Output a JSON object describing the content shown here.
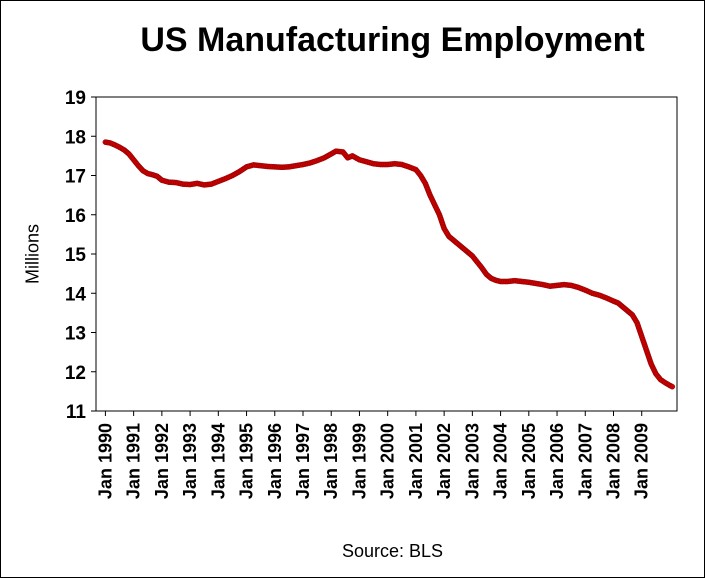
{
  "chart_data": {
    "type": "scatter",
    "title": "US Manufacturing Employment",
    "ylabel": "Millions",
    "xlabel": "",
    "source": "Source: BLS",
    "ylim": [
      11,
      19
    ],
    "yticks": [
      11,
      12,
      13,
      14,
      15,
      16,
      17,
      18,
      19
    ],
    "xlim": [
      "1989-09",
      "2010-04"
    ],
    "xtick_labels": [
      "Jan 1990",
      "Jan 1991",
      "Jan 1992",
      "Jan 1993",
      "Jan 1994",
      "Jan 1995",
      "Jan 1996",
      "Jan 1997",
      "Jan 1998",
      "Jan 1999",
      "Jan 2000",
      "Jan 2001",
      "Jan 2002",
      "Jan 2003",
      "Jan 2004",
      "Jan 2005",
      "Jan 2006",
      "Jan 2007",
      "Jan 2008",
      "Jan 2009"
    ],
    "grid": false,
    "marker_color": "#cc0000",
    "series": [
      {
        "points": [
          [
            "1990-01",
            17.85
          ],
          [
            "1990-03",
            17.83
          ],
          [
            "1990-05",
            17.78
          ],
          [
            "1990-07",
            17.72
          ],
          [
            "1990-09",
            17.65
          ],
          [
            "1990-11",
            17.55
          ],
          [
            "1991-01",
            17.4
          ],
          [
            "1991-03",
            17.25
          ],
          [
            "1991-05",
            17.12
          ],
          [
            "1991-07",
            17.05
          ],
          [
            "1991-09",
            17.02
          ],
          [
            "1991-11",
            16.98
          ],
          [
            "1992-01",
            16.88
          ],
          [
            "1992-04",
            16.83
          ],
          [
            "1992-07",
            16.82
          ],
          [
            "1992-10",
            16.78
          ],
          [
            "1993-01",
            16.77
          ],
          [
            "1993-04",
            16.8
          ],
          [
            "1993-07",
            16.76
          ],
          [
            "1993-10",
            16.78
          ],
          [
            "1994-01",
            16.85
          ],
          [
            "1994-04",
            16.92
          ],
          [
            "1994-07",
            17.0
          ],
          [
            "1994-10",
            17.1
          ],
          [
            "1995-01",
            17.22
          ],
          [
            "1995-04",
            17.27
          ],
          [
            "1995-07",
            17.25
          ],
          [
            "1995-10",
            17.23
          ],
          [
            "1996-01",
            17.22
          ],
          [
            "1996-04",
            17.21
          ],
          [
            "1996-07",
            17.22
          ],
          [
            "1996-10",
            17.25
          ],
          [
            "1997-01",
            17.28
          ],
          [
            "1997-04",
            17.32
          ],
          [
            "1997-07",
            17.38
          ],
          [
            "1997-10",
            17.45
          ],
          [
            "1998-01",
            17.55
          ],
          [
            "1998-03",
            17.62
          ],
          [
            "1998-06",
            17.6
          ],
          [
            "1998-08",
            17.45
          ],
          [
            "1998-10",
            17.5
          ],
          [
            "1999-01",
            17.4
          ],
          [
            "1999-04",
            17.35
          ],
          [
            "1999-07",
            17.3
          ],
          [
            "1999-10",
            17.28
          ],
          [
            "2000-01",
            17.28
          ],
          [
            "2000-04",
            17.3
          ],
          [
            "2000-07",
            17.28
          ],
          [
            "2000-10",
            17.22
          ],
          [
            "2001-01",
            17.15
          ],
          [
            "2001-03",
            17.0
          ],
          [
            "2001-05",
            16.8
          ],
          [
            "2001-07",
            16.5
          ],
          [
            "2001-09",
            16.25
          ],
          [
            "2001-11",
            16.0
          ],
          [
            "2002-01",
            15.65
          ],
          [
            "2002-03",
            15.45
          ],
          [
            "2002-05",
            15.35
          ],
          [
            "2002-07",
            15.25
          ],
          [
            "2002-09",
            15.15
          ],
          [
            "2002-11",
            15.05
          ],
          [
            "2003-01",
            14.95
          ],
          [
            "2003-03",
            14.8
          ],
          [
            "2003-05",
            14.65
          ],
          [
            "2003-07",
            14.48
          ],
          [
            "2003-09",
            14.38
          ],
          [
            "2003-11",
            14.33
          ],
          [
            "2004-01",
            14.3
          ],
          [
            "2004-04",
            14.3
          ],
          [
            "2004-07",
            14.32
          ],
          [
            "2004-10",
            14.3
          ],
          [
            "2005-01",
            14.28
          ],
          [
            "2005-04",
            14.25
          ],
          [
            "2005-07",
            14.22
          ],
          [
            "2005-10",
            14.18
          ],
          [
            "2006-01",
            14.2
          ],
          [
            "2006-04",
            14.22
          ],
          [
            "2006-07",
            14.2
          ],
          [
            "2006-10",
            14.15
          ],
          [
            "2007-01",
            14.08
          ],
          [
            "2007-04",
            14.0
          ],
          [
            "2007-07",
            13.95
          ],
          [
            "2007-10",
            13.88
          ],
          [
            "2008-01",
            13.8
          ],
          [
            "2008-03",
            13.75
          ],
          [
            "2008-05",
            13.65
          ],
          [
            "2008-07",
            13.55
          ],
          [
            "2008-09",
            13.45
          ],
          [
            "2008-11",
            13.25
          ],
          [
            "2009-01",
            12.9
          ],
          [
            "2009-03",
            12.55
          ],
          [
            "2009-05",
            12.2
          ],
          [
            "2009-07",
            11.95
          ],
          [
            "2009-09",
            11.8
          ],
          [
            "2009-11",
            11.72
          ],
          [
            "2010-01",
            11.65
          ],
          [
            "2010-02",
            11.62
          ]
        ]
      }
    ]
  }
}
